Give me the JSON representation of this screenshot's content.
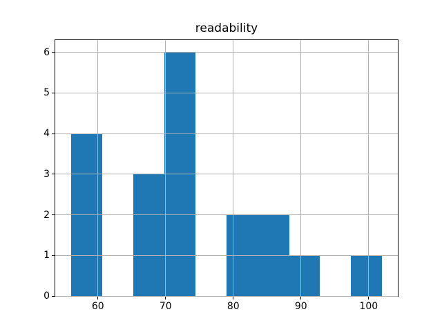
{
  "chart_data": {
    "type": "histogram",
    "title": "readability",
    "bin_edges": [
      56,
      60.6,
      65.2,
      69.8,
      74.4,
      79.0,
      83.6,
      88.2,
      92.8,
      97.4,
      102
    ],
    "counts": [
      4,
      0,
      3,
      6,
      0,
      2,
      2,
      1,
      0,
      1
    ],
    "xticks": [
      60,
      70,
      80,
      90,
      100
    ],
    "yticks": [
      0,
      1,
      2,
      3,
      4,
      5,
      6
    ],
    "xlim": [
      53.7,
      104.3
    ],
    "ylim": [
      0,
      6.3
    ],
    "xlabel": "",
    "ylabel": "",
    "grid": true,
    "grid_above_bars": true,
    "legend": "none",
    "bar_color": "#1f77b4",
    "grid_color": "#b0b0b0",
    "spine_color": "#000000",
    "text_color": "#000000",
    "background": "#ffffff"
  }
}
